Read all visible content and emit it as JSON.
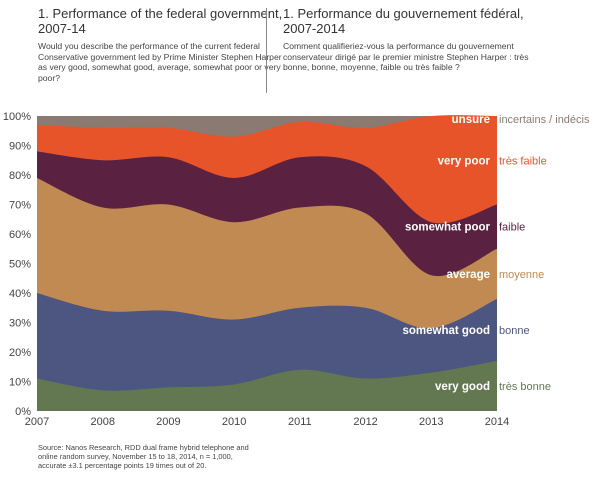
{
  "header": {
    "en_title": "1. Performance of the federal government, 2007-14",
    "en_question": "Would you describe the performance of the current federal Conservative government led by Prime Minister Stephen Harper as very good, somewhat good, average, somewhat poor or very poor?",
    "fr_title": "1. Performance du gouvernement fédéral, 2007-2014",
    "fr_question": "Comment qualifieriez-vous la performance du gouvernement conservateur dirigé par le premier ministre Stephen Harper : très bonne, bonne, moyenne, faible ou très faible ?"
  },
  "source": "Source: Nanos Research, RDD dual frame hybrid telephone and online random survey, November 15 to 18, 2014, n = 1,000, accurate ±3.1 percentage points 19 times out of 20.",
  "chart_data": {
    "type": "area",
    "stacked": true,
    "x": [
      "2007",
      "2008",
      "2009",
      "2010",
      "2011",
      "2012",
      "2013",
      "2014"
    ],
    "ylim": [
      0,
      100
    ],
    "yticks": [
      "0%",
      "10%",
      "20%",
      "30%",
      "40%",
      "50%",
      "60%",
      "70%",
      "80%",
      "90%",
      "100%"
    ],
    "grid": false,
    "legend": "inline-right",
    "series": [
      {
        "name": "very good",
        "name_fr": "très bonne",
        "color": "#637850",
        "values": [
          11,
          7,
          8,
          9,
          14,
          11,
          13,
          17
        ]
      },
      {
        "name": "somewhat good",
        "name_fr": "bonne",
        "color": "#4d5680",
        "values": [
          29,
          27,
          26,
          22,
          21,
          24,
          15,
          21
        ]
      },
      {
        "name": "average",
        "name_fr": "moyenne",
        "color": "#c08a52",
        "values": [
          39,
          35,
          36,
          33,
          34,
          32,
          18,
          17
        ]
      },
      {
        "name": "somewhat poor",
        "name_fr": "faible",
        "color": "#5a2240",
        "values": [
          9,
          16,
          16,
          15,
          17,
          16,
          18,
          15
        ]
      },
      {
        "name": "very poor",
        "name_fr": "très faible",
        "color": "#e8542a",
        "values": [
          9,
          11,
          10,
          14,
          12,
          13,
          36,
          30
        ]
      },
      {
        "name": "unsure",
        "name_fr": "incertains / indécis",
        "color": "#8a7a72",
        "values": [
          3,
          4,
          4,
          7,
          2,
          4,
          0,
          0
        ]
      }
    ]
  }
}
